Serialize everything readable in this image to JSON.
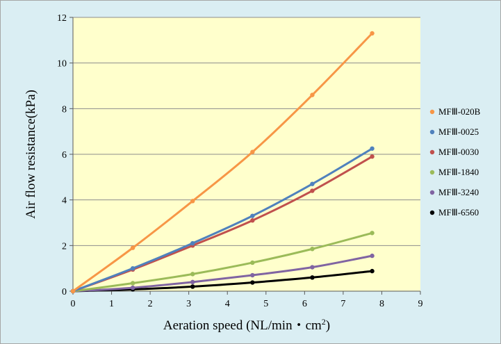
{
  "chart_data": {
    "type": "line",
    "title": "",
    "xlabel": "Aeration speed (NL/min・cm",
    "xlabel_sup": "2",
    "xlabel_suffix": ")",
    "ylabel": "Air flow resistance(kPa)",
    "xlim": [
      0,
      9
    ],
    "ylim": [
      0,
      12
    ],
    "xticks": [
      "0",
      "1",
      "2",
      "3",
      "4",
      "5",
      "6",
      "7",
      "8",
      "9"
    ],
    "yticks": [
      "0",
      "2",
      "4",
      "6",
      "8",
      "10",
      "12"
    ],
    "grid": "horizontal",
    "legend_position": "right",
    "plot_background": "#ffffcc",
    "series": [
      {
        "name": "MFⅢ-020B",
        "color": "#f79646",
        "x": [
          0,
          1.55,
          3.1,
          4.65,
          6.2,
          7.75
        ],
        "y": [
          0,
          1.9,
          3.95,
          6.1,
          8.6,
          11.3
        ]
      },
      {
        "name": "MFⅢ-0025",
        "color": "#4f81bd",
        "x": [
          0,
          1.55,
          3.1,
          4.65,
          6.2,
          7.75
        ],
        "y": [
          0,
          1.0,
          2.1,
          3.3,
          4.7,
          6.25
        ]
      },
      {
        "name": "MFⅢ-0030",
        "color": "#c0504d",
        "x": [
          0,
          1.55,
          3.1,
          4.65,
          6.2,
          7.75
        ],
        "y": [
          0,
          0.95,
          2.0,
          3.1,
          4.4,
          5.9
        ]
      },
      {
        "name": "MFⅢ-1840",
        "color": "#9bbb59",
        "x": [
          0,
          1.55,
          3.1,
          4.65,
          6.2,
          7.75
        ],
        "y": [
          0,
          0.35,
          0.75,
          1.25,
          1.85,
          2.55
        ]
      },
      {
        "name": "MFⅢ-3240",
        "color": "#8064a2",
        "x": [
          0,
          1.55,
          3.1,
          4.65,
          6.2,
          7.75
        ],
        "y": [
          0,
          0.15,
          0.4,
          0.7,
          1.05,
          1.55
        ]
      },
      {
        "name": "MFⅢ-6560",
        "color": "#000000",
        "x": [
          0,
          1.55,
          3.1,
          4.65,
          6.2,
          7.75
        ],
        "y": [
          0,
          0.08,
          0.2,
          0.38,
          0.6,
          0.88
        ]
      }
    ]
  }
}
